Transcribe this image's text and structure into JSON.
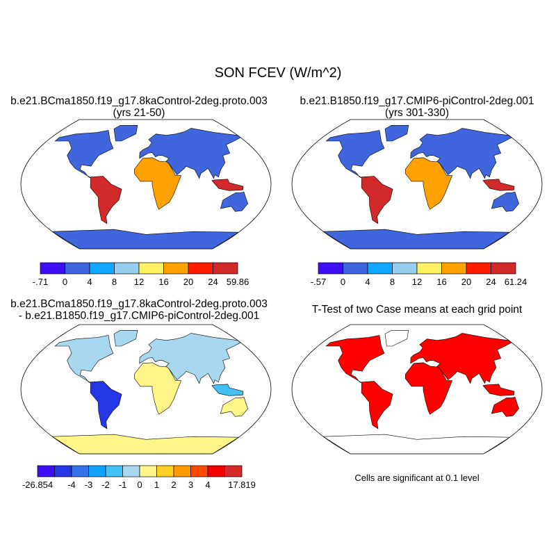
{
  "title": "SON FCEV (W/m^2)",
  "panels": [
    {
      "title_line1": "b.e21.BCma1850.f19_g17.8kaControl-2deg.proto.003",
      "title_line2": "(yrs 21-50)",
      "colorbar": {
        "labels": [
          "-.71",
          "0",
          "4",
          "8",
          "12",
          "16",
          "20",
          "24",
          "59.86"
        ],
        "colors": [
          "#3c10f2",
          "#3f66dc",
          "#10a8fc",
          "#96cfee",
          "#fff064",
          "#ffa100",
          "#ff1c00",
          "#d22a2a"
        ]
      }
    },
    {
      "title_line1": "b.e21.B1850.f19_g17.CMIP6-piControl-2deg.001",
      "title_line2": "(yrs 301-330)",
      "colorbar": {
        "labels": [
          "-.57",
          "0",
          "4",
          "8",
          "12",
          "16",
          "20",
          "24",
          "61.24"
        ],
        "colors": [
          "#3c10f2",
          "#3f66dc",
          "#10a8fc",
          "#96cfee",
          "#fff064",
          "#ffa100",
          "#ff1c00",
          "#d22a2a"
        ]
      }
    },
    {
      "title_line1": "b.e21.BCma1850.f19_g17.8kaControl-2deg.proto.003",
      "title_line2": "- b.e21.B1850.f19_g17.CMIP6-piControl-2deg.001",
      "colorbar": {
        "labels": [
          "-26.854",
          "",
          "-4",
          "-3",
          "-2",
          "-1",
          "0",
          "1",
          "2",
          "3",
          "4",
          "",
          "17.819"
        ],
        "colors": [
          "#3e0ef5",
          "#2538e8",
          "#3573ea",
          "#0fa1fb",
          "#45c0f5",
          "#a8d8f0",
          "#fff68a",
          "#ffd020",
          "#ff9a00",
          "#ff4a00",
          "#f00000",
          "#d42a2a"
        ]
      }
    },
    {
      "title_line1": "T-Test of two Case means at each grid point",
      "title_line2": "",
      "note": "Cells are significant at 0.1 level",
      "significant_color": "#ff0000"
    }
  ]
}
